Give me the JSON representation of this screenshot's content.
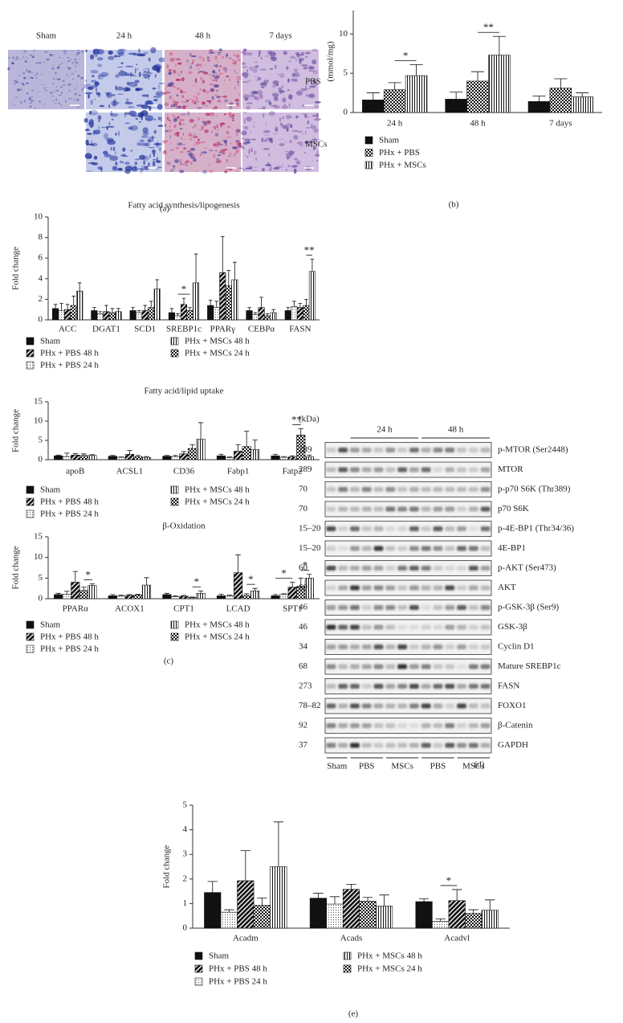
{
  "chart_data": [
    {
      "type": "bar",
      "panel": "(b)",
      "y_label": "(mmol/mg)",
      "categories": [
        "24 h",
        "48 h",
        "7 days"
      ],
      "ylim": [
        0,
        13
      ],
      "yticks": [
        0,
        5,
        10
      ],
      "series": [
        {
          "name": "Sham",
          "color": "#111111",
          "pattern": "solid",
          "values": [
            1.6,
            1.7,
            1.4
          ],
          "errors": [
            0.9,
            0.9,
            0.7
          ]
        },
        {
          "name": "PHx + PBS",
          "color": "#111111",
          "pattern": "checker",
          "values": [
            2.9,
            4.0,
            3.1
          ],
          "errors": [
            0.9,
            1.2,
            1.2
          ]
        },
        {
          "name": "PHx + MSCs",
          "color": "#111111",
          "pattern": "vstripes",
          "values": [
            4.7,
            7.3,
            2.0
          ],
          "errors": [
            1.4,
            2.4,
            0.5
          ]
        }
      ],
      "annotations": [
        {
          "text": "*",
          "category": "24 h",
          "between": [
            "PHx + PBS",
            "PHx + MSCs"
          ]
        },
        {
          "text": "**",
          "category": "48 h",
          "between": [
            "PHx + PBS",
            "PHx + MSCs"
          ]
        }
      ]
    },
    {
      "type": "bar",
      "title": "Fatty acid synthesis/lipogenesis",
      "y_label": "Fold change",
      "categories": [
        "ACC",
        "DGAT1",
        "SCD1",
        "SREBP1c",
        "PPARγ",
        "CEBPα",
        "FASN"
      ],
      "ylim": [
        0,
        10
      ],
      "yticks": [
        0,
        2,
        4,
        6,
        8,
        10
      ],
      "series": [
        {
          "name": "Sham",
          "color": "#111111",
          "pattern": "solid",
          "values": [
            1.1,
            0.9,
            0.9,
            0.7,
            1.4,
            0.9,
            0.9
          ],
          "errors": [
            0.4,
            0.3,
            0.3,
            0.4,
            0.5,
            0.3,
            0.3
          ]
        },
        {
          "name": "PHx + PBS 24 h",
          "color": "#111111",
          "pattern": "dots",
          "values": [
            0.9,
            0.6,
            0.7,
            0.4,
            1.2,
            0.5,
            1.3
          ],
          "errors": [
            0.7,
            0.2,
            0.2,
            0.2,
            0.6,
            0.2,
            0.5
          ]
        },
        {
          "name": "PHx + PBS 48 h",
          "color": "#111111",
          "pattern": "diagonal",
          "values": [
            1.0,
            0.8,
            0.9,
            1.5,
            4.6,
            1.2,
            1.2
          ],
          "errors": [
            0.5,
            0.6,
            0.5,
            0.6,
            3.5,
            1.0,
            0.4
          ]
        },
        {
          "name": "PHx + MSCs 24 h",
          "color": "#111111",
          "pattern": "checker",
          "values": [
            1.4,
            0.7,
            1.2,
            0.9,
            3.3,
            0.4,
            1.4
          ],
          "errors": [
            0.9,
            0.4,
            0.6,
            0.3,
            1.5,
            0.2,
            0.6
          ]
        },
        {
          "name": "PHx + MSCs 48 h",
          "color": "#111111",
          "pattern": "vstripes",
          "values": [
            2.8,
            0.8,
            3.0,
            3.6,
            3.9,
            0.7,
            4.7
          ],
          "errors": [
            0.8,
            0.3,
            0.9,
            2.8,
            1.7,
            0.3,
            1.2
          ]
        }
      ],
      "annotations": [
        {
          "text": "*",
          "category": "SREBP1c",
          "between": [
            "PHx + PBS 24 h",
            "PHx + MSCs 24 h"
          ]
        },
        {
          "text": "**",
          "category": "FASN",
          "between": [
            "PHx + MSCs 24 h",
            "PHx + MSCs 48 h"
          ]
        }
      ]
    },
    {
      "type": "bar",
      "title": "Fatty acid/lipid uptake",
      "y_label": "Fold change",
      "categories": [
        "apoB",
        "ACSL1",
        "CD36",
        "Fabp1",
        "Fatp2"
      ],
      "ylim": [
        0,
        15
      ],
      "yticks": [
        0,
        5,
        10,
        15
      ],
      "series": [
        {
          "name": "Sham",
          "color": "#111111",
          "pattern": "solid",
          "values": [
            1.0,
            0.9,
            0.9,
            1.0,
            1.0
          ],
          "errors": [
            0.2,
            0.2,
            0.2,
            0.4,
            0.4
          ]
        },
        {
          "name": "PHx + PBS 24 h",
          "color": "#111111",
          "pattern": "dots",
          "values": [
            0.8,
            0.6,
            0.8,
            0.5,
            0.6
          ],
          "errors": [
            0.9,
            0.1,
            0.3,
            0.2,
            0.2
          ]
        },
        {
          "name": "PHx + PBS 48 h",
          "color": "#111111",
          "pattern": "diagonal",
          "values": [
            1.2,
            1.4,
            1.5,
            2.2,
            0.7
          ],
          "errors": [
            0.4,
            1.0,
            0.6,
            1.7,
            0.3
          ]
        },
        {
          "name": "PHx + MSCs 24 h",
          "color": "#111111",
          "pattern": "checker",
          "values": [
            1.1,
            0.8,
            2.9,
            3.4,
            6.4
          ],
          "errors": [
            0.4,
            0.3,
            1.0,
            4.0,
            1.6
          ]
        },
        {
          "name": "PHx + MSCs 48 h",
          "color": "#111111",
          "pattern": "vstripes",
          "values": [
            1.1,
            0.6,
            5.3,
            2.6,
            0.8
          ],
          "errors": [
            0.2,
            0.2,
            4.3,
            2.5,
            0.4
          ]
        }
      ],
      "annotations": [
        {
          "text": "**",
          "category": "Fatp2",
          "between": [
            "PHx + PBS 48 h",
            "PHx + MSCs 24 h"
          ]
        }
      ]
    },
    {
      "type": "bar",
      "title": "β-Oxidation",
      "panel": "(c)",
      "y_label": "Fold change",
      "categories": [
        "PPARα",
        "ACOX1",
        "CPT1",
        "LCAD",
        "SPT1"
      ],
      "ylim": [
        0,
        15
      ],
      "yticks": [
        0,
        5,
        10,
        15
      ],
      "series": [
        {
          "name": "Sham",
          "color": "#111111",
          "pattern": "solid",
          "values": [
            1.0,
            0.7,
            1.0,
            0.7,
            0.7
          ],
          "errors": [
            0.3,
            0.3,
            0.3,
            0.4,
            0.3
          ]
        },
        {
          "name": "PHx + PBS 24 h",
          "color": "#111111",
          "pattern": "dots",
          "values": [
            1.1,
            0.7,
            0.5,
            0.7,
            1.0
          ],
          "errors": [
            0.7,
            0.2,
            0.2,
            0.2,
            0.2
          ]
        },
        {
          "name": "PHx + PBS 48 h",
          "color": "#111111",
          "pattern": "diagonal",
          "values": [
            4.0,
            0.8,
            0.6,
            6.3,
            2.8
          ],
          "errors": [
            2.6,
            0.2,
            0.2,
            4.3,
            1.2
          ]
        },
        {
          "name": "PHx + MSCs 24 h",
          "color": "#111111",
          "pattern": "checker",
          "values": [
            2.0,
            0.9,
            0.3,
            0.8,
            3.0
          ],
          "errors": [
            0.8,
            0.2,
            0.1,
            0.4,
            2.0
          ]
        },
        {
          "name": "PHx + MSCs 48 h",
          "color": "#111111",
          "pattern": "vstripes",
          "values": [
            3.2,
            3.3,
            1.3,
            1.9,
            5.0
          ],
          "errors": [
            0.4,
            1.8,
            0.6,
            0.6,
            0.9
          ]
        }
      ],
      "annotations": [
        {
          "text": "*",
          "category": "PPARα",
          "between": [
            "PHx + MSCs 24 h",
            "PHx + MSCs 48 h"
          ]
        },
        {
          "text": "*",
          "category": "CPT1",
          "between": [
            "PHx + MSCs 24 h",
            "PHx + MSCs 48 h"
          ]
        },
        {
          "text": "*",
          "category": "LCAD",
          "between": [
            "PHx + MSCs 24 h",
            "PHx + MSCs 48 h"
          ]
        },
        {
          "text": "*",
          "category": "SPT1",
          "between": [
            "Sham",
            "PHx + PBS 48 h"
          ]
        },
        {
          "text": "*",
          "category": "SPT1",
          "between": [
            "PHx + MSCs 24 h",
            "PHx + MSCs 48 h"
          ]
        }
      ]
    },
    {
      "type": "bar",
      "panel": "(e)",
      "y_label": "Fold change",
      "categories": [
        "Acadm",
        "Acads",
        "Acadvl"
      ],
      "ylim": [
        0,
        5
      ],
      "yticks": [
        0,
        1,
        2,
        3,
        4,
        5
      ],
      "series": [
        {
          "name": "Sham",
          "color": "#111111",
          "pattern": "solid",
          "values": [
            1.45,
            1.22,
            1.08
          ],
          "errors": [
            0.45,
            0.2,
            0.12
          ]
        },
        {
          "name": "PHx + PBS 24 h",
          "color": "#111111",
          "pattern": "dots",
          "values": [
            0.65,
            0.98,
            0.28
          ],
          "errors": [
            0.1,
            0.3,
            0.1
          ]
        },
        {
          "name": "PHx + PBS 48 h",
          "color": "#111111",
          "pattern": "diagonal",
          "values": [
            1.93,
            1.58,
            1.12
          ],
          "errors": [
            1.22,
            0.2,
            0.45
          ]
        },
        {
          "name": "PHx + MSCs 24 h",
          "color": "#111111",
          "pattern": "checker",
          "values": [
            0.93,
            1.1,
            0.6
          ],
          "errors": [
            0.3,
            0.15,
            0.15
          ]
        },
        {
          "name": "PHx + MSCs 48 h",
          "color": "#111111",
          "pattern": "vstripes",
          "values": [
            2.5,
            0.9,
            0.73
          ],
          "errors": [
            1.82,
            0.45,
            0.42
          ]
        }
      ],
      "annotations": [
        {
          "text": "*",
          "category": "Acadvl",
          "between": [
            "PHx + PBS 24 h",
            "PHx + PBS 48 h"
          ]
        }
      ]
    }
  ],
  "histology": {
    "panel": "(a)",
    "columns": [
      "Sham",
      "24 h",
      "48 h",
      "7 days"
    ],
    "rows": [
      "PBS",
      "MSCs"
    ]
  },
  "blot": {
    "panel": "(d)",
    "unit_label": "(kDa)",
    "groups": [
      "24 h",
      "48 h"
    ],
    "lanes": [
      "Sham",
      "PBS",
      "MSCs",
      "PBS",
      "MSCs"
    ],
    "rows": [
      {
        "kda": "289",
        "label": "p-MTOR (Ser2448)"
      },
      {
        "kda": "289",
        "label": "MTOR"
      },
      {
        "kda": "70",
        "label": "p-p70 S6K (Thr389)"
      },
      {
        "kda": "70",
        "label": "p70 S6K"
      },
      {
        "kda": "15–20",
        "label": "p-4E-BP1 (Thr34/36)"
      },
      {
        "kda": "15–20",
        "label": "4E-BP1"
      },
      {
        "kda": "60",
        "label": "p-AKT (Ser473)"
      },
      {
        "kda": "60",
        "label": "AKT"
      },
      {
        "kda": "46",
        "label": "p-GSK-3β (Ser9)"
      },
      {
        "kda": "46",
        "label": "GSK-3β"
      },
      {
        "kda": "34",
        "label": "Cyclin D1"
      },
      {
        "kda": "68",
        "label": "Mature SREBP1c"
      },
      {
        "kda": "273",
        "label": "FASN"
      },
      {
        "kda": "78–82",
        "label": "FOXO1"
      },
      {
        "kda": "92",
        "label": "β-Catenin"
      },
      {
        "kda": "37",
        "label": "GAPDH"
      }
    ]
  }
}
